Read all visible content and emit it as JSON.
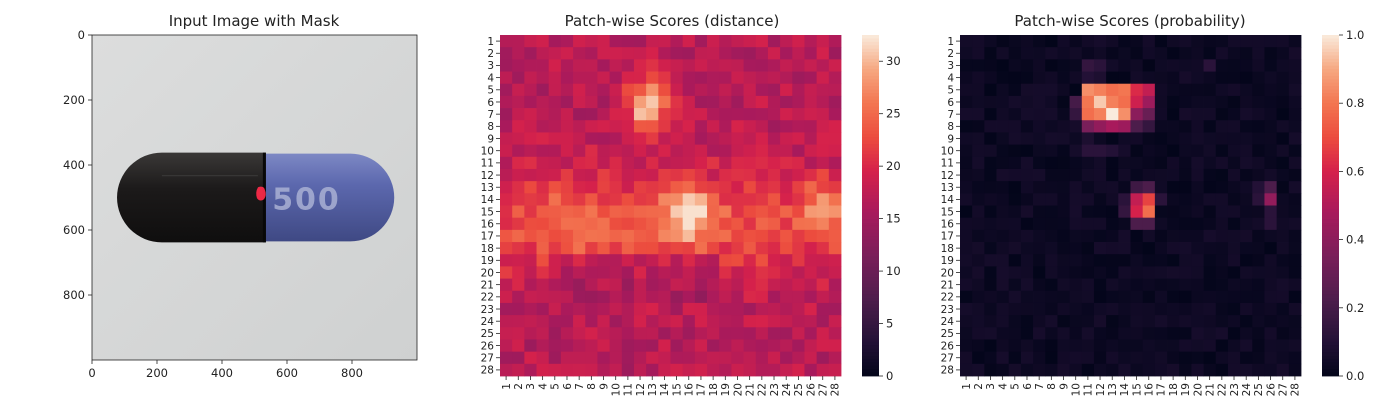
{
  "chart_data": [
    {
      "type": "image",
      "title": "Input Image with Mask",
      "xlim": [
        0,
        1000
      ],
      "ylim": [
        1000,
        0
      ],
      "xticks": [
        "0",
        "200",
        "400",
        "600",
        "800"
      ],
      "yticks": [
        "0",
        "200",
        "400",
        "600",
        "800"
      ],
      "image": {
        "background": "light gray (mask-overlay photo)",
        "object": "capsule",
        "cap_color": "#1c1a1a",
        "body_color": "#5c68ae",
        "printed_text": "500",
        "mask_color": "#ff2a4a",
        "mask_center": [
          520,
          490
        ]
      }
    },
    {
      "type": "heatmap",
      "title": "Patch-wise Scores (distance)",
      "rows": 28,
      "cols": 28,
      "row_labels": [
        "1",
        "2",
        "3",
        "4",
        "5",
        "6",
        "7",
        "8",
        "9",
        "10",
        "11",
        "12",
        "13",
        "14",
        "15",
        "16",
        "17",
        "18",
        "19",
        "20",
        "21",
        "22",
        "23",
        "24",
        "25",
        "26",
        "27",
        "28"
      ],
      "col_labels": [
        "1",
        "2",
        "3",
        "4",
        "5",
        "6",
        "7",
        "8",
        "9",
        "10",
        "11",
        "12",
        "13",
        "14",
        "15",
        "16",
        "17",
        "18",
        "19",
        "20",
        "21",
        "22",
        "23",
        "24",
        "25",
        "26",
        "27",
        "28"
      ],
      "colormap": "rocket",
      "colorbar": {
        "range": [
          0,
          32.5
        ],
        "ticks": [
          "0",
          "5",
          "10",
          "15",
          "20",
          "25",
          "30"
        ]
      },
      "base_value": 17,
      "bands": [
        {
          "row": 16,
          "col": 15,
          "row_sigma": 3.0,
          "col_sigma": 30,
          "amp": 6
        }
      ],
      "hotspots": [
        {
          "row": 6.5,
          "col": 12.6,
          "row_sigma": 1.7,
          "col_sigma": 1.2,
          "amp": 13
        },
        {
          "row": 15.2,
          "col": 16.0,
          "row_sigma": 1.6,
          "col_sigma": 1.5,
          "amp": 10
        },
        {
          "row": 14.5,
          "col": 27.0,
          "row_sigma": 1.3,
          "col_sigma": 1.1,
          "amp": 7
        },
        {
          "row": 16.0,
          "col": 6.0,
          "row_sigma": 2.0,
          "col_sigma": 2.2,
          "amp": 3
        }
      ],
      "peak_value": 32
    },
    {
      "type": "heatmap",
      "title": "Patch-wise Scores (probability)",
      "rows": 28,
      "cols": 28,
      "row_labels": [
        "1",
        "2",
        "3",
        "4",
        "5",
        "6",
        "7",
        "8",
        "9",
        "10",
        "11",
        "12",
        "13",
        "14",
        "15",
        "16",
        "17",
        "18",
        "19",
        "20",
        "21",
        "22",
        "23",
        "24",
        "25",
        "26",
        "27",
        "28"
      ],
      "col_labels": [
        "1",
        "2",
        "3",
        "4",
        "5",
        "6",
        "7",
        "8",
        "9",
        "10",
        "11",
        "12",
        "13",
        "14",
        "15",
        "16",
        "17",
        "18",
        "19",
        "20",
        "21",
        "22",
        "23",
        "24",
        "25",
        "26",
        "27",
        "28"
      ],
      "colormap": "rocket",
      "colorbar": {
        "range": [
          0,
          1.0
        ],
        "ticks": [
          "0.0",
          "0.2",
          "0.4",
          "0.6",
          "0.8",
          "1.0"
        ]
      },
      "base_value": 0.0,
      "cells": [
        {
          "row": 5,
          "col": 11,
          "value": 0.85
        },
        {
          "row": 5,
          "col": 12,
          "value": 0.82
        },
        {
          "row": 5,
          "col": 13,
          "value": 0.78
        },
        {
          "row": 5,
          "col": 14,
          "value": 0.8
        },
        {
          "row": 5,
          "col": 15,
          "value": 0.62
        },
        {
          "row": 5,
          "col": 16,
          "value": 0.55
        },
        {
          "row": 6,
          "col": 10,
          "value": 0.2
        },
        {
          "row": 6,
          "col": 11,
          "value": 0.8
        },
        {
          "row": 6,
          "col": 12,
          "value": 0.95
        },
        {
          "row": 6,
          "col": 13,
          "value": 0.82
        },
        {
          "row": 6,
          "col": 14,
          "value": 0.78
        },
        {
          "row": 6,
          "col": 15,
          "value": 0.58
        },
        {
          "row": 6,
          "col": 16,
          "value": 0.45
        },
        {
          "row": 7,
          "col": 10,
          "value": 0.15
        },
        {
          "row": 7,
          "col": 11,
          "value": 0.78
        },
        {
          "row": 7,
          "col": 12,
          "value": 0.82
        },
        {
          "row": 7,
          "col": 13,
          "value": 1.0
        },
        {
          "row": 7,
          "col": 14,
          "value": 0.85
        },
        {
          "row": 7,
          "col": 15,
          "value": 0.4
        },
        {
          "row": 7,
          "col": 16,
          "value": 0.3
        },
        {
          "row": 8,
          "col": 11,
          "value": 0.35
        },
        {
          "row": 8,
          "col": 12,
          "value": 0.42
        },
        {
          "row": 8,
          "col": 13,
          "value": 0.48
        },
        {
          "row": 8,
          "col": 14,
          "value": 0.45
        },
        {
          "row": 8,
          "col": 15,
          "value": 0.22
        },
        {
          "row": 8,
          "col": 16,
          "value": 0.15
        },
        {
          "row": 3,
          "col": 11,
          "value": 0.15
        },
        {
          "row": 3,
          "col": 12,
          "value": 0.12
        },
        {
          "row": 4,
          "col": 11,
          "value": 0.1
        },
        {
          "row": 4,
          "col": 12,
          "value": 0.08
        },
        {
          "row": 9,
          "col": 11,
          "value": 0.08
        },
        {
          "row": 10,
          "col": 11,
          "value": 0.12
        },
        {
          "row": 10,
          "col": 12,
          "value": 0.12
        },
        {
          "row": 10,
          "col": 13,
          "value": 0.1
        },
        {
          "row": 3,
          "col": 21,
          "value": 0.12
        },
        {
          "row": 14,
          "col": 15,
          "value": 0.55
        },
        {
          "row": 14,
          "col": 16,
          "value": 0.68
        },
        {
          "row": 15,
          "col": 15,
          "value": 0.6
        },
        {
          "row": 15,
          "col": 16,
          "value": 0.78
        },
        {
          "row": 13,
          "col": 15,
          "value": 0.18
        },
        {
          "row": 13,
          "col": 16,
          "value": 0.22
        },
        {
          "row": 16,
          "col": 15,
          "value": 0.22
        },
        {
          "row": 16,
          "col": 16,
          "value": 0.22
        },
        {
          "row": 14,
          "col": 14,
          "value": 0.12
        },
        {
          "row": 15,
          "col": 14,
          "value": 0.15
        },
        {
          "row": 14,
          "col": 17,
          "value": 0.12
        },
        {
          "row": 13,
          "col": 26,
          "value": 0.22
        },
        {
          "row": 14,
          "col": 26,
          "value": 0.42
        },
        {
          "row": 15,
          "col": 26,
          "value": 0.12
        },
        {
          "row": 16,
          "col": 26,
          "value": 0.12
        },
        {
          "row": 14,
          "col": 25,
          "value": 0.12
        },
        {
          "row": 13,
          "col": 25,
          "value": 0.1
        }
      ]
    }
  ]
}
